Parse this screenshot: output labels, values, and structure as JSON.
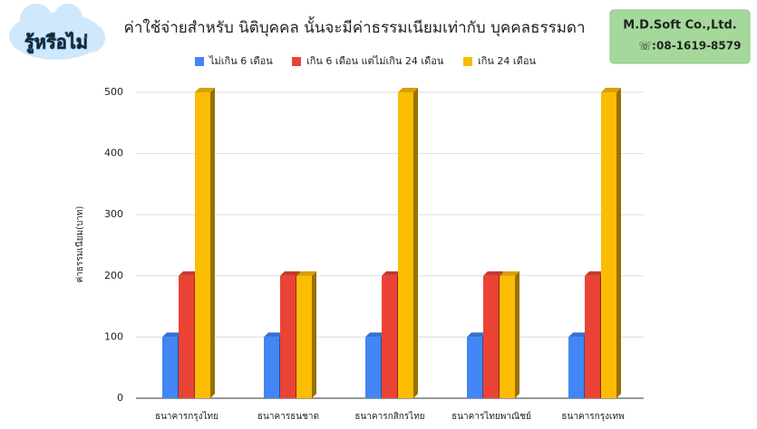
{
  "badge": {
    "text": "รู้หรือไม่"
  },
  "company": {
    "name": "M.D.Soft Co.,Ltd.",
    "phone": "08-1619-8579"
  },
  "chart_data": {
    "type": "bar3d",
    "title": "ค่าใช้จ่ายสำหรับ นิติบุคคล นั้นจะมีค่าธรรมเนียมเท่ากับ บุคคลธรรมดา",
    "y_label": "ค่าธรรมเนียม(บาท)",
    "categories": [
      "ธนาคารกรุงไทย",
      "ธนาคารธนชาต",
      "ธนาคารกสิกรไทย",
      "ธนาคารไทยพาณิชย์",
      "ธนาคารกรุงเทพ"
    ],
    "series": [
      {
        "name": "ไม่เกิน 6 เดือน",
        "color": "#4285f4",
        "values": [
          100,
          100,
          100,
          100,
          100
        ]
      },
      {
        "name": "เกิน 6 เดือน แต่ไม่เกิน 24 เดือน",
        "color": "#ea4335",
        "values": [
          200,
          200,
          200,
          200,
          200
        ]
      },
      {
        "name": "เกิน 24 เดือน",
        "color": "#fbbc04",
        "values": [
          500,
          200,
          500,
          200,
          500
        ]
      }
    ],
    "ylim": [
      0,
      500
    ],
    "yticks": [
      0,
      100,
      200,
      300,
      400,
      500
    ],
    "grid": true,
    "legend": "top"
  }
}
